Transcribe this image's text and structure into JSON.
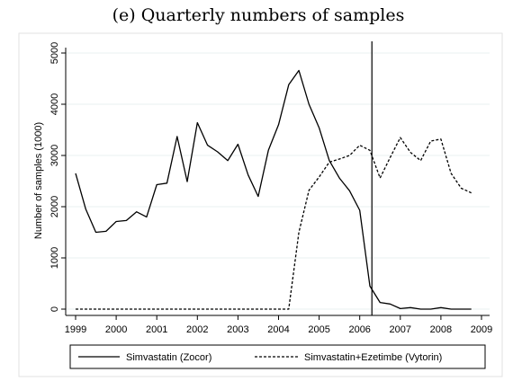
{
  "chart_data": {
    "type": "line",
    "title": "(e) Quarterly numbers of samples",
    "xlabel": "",
    "ylabel": "Number of samples (1000)",
    "xlim": [
      1999,
      2009
    ],
    "ylim": [
      0,
      5000
    ],
    "x_ticks": [
      "1999",
      "2000",
      "2001",
      "2002",
      "2003",
      "2004",
      "2005",
      "2006",
      "2007",
      "2008",
      "2009"
    ],
    "y_ticks": [
      "0",
      "1000",
      "2000",
      "3000",
      "4000",
      "5000"
    ],
    "grid": true,
    "vertical_line_x": 2006.3,
    "legend_position": "bottom",
    "series": [
      {
        "name": "Simvastatin (Zocor)",
        "style": "solid",
        "x": [
          1999.0,
          1999.25,
          1999.5,
          1999.75,
          2000.0,
          2000.25,
          2000.5,
          2000.75,
          2001.0,
          2001.25,
          2001.5,
          2001.75,
          2002.0,
          2002.25,
          2002.5,
          2002.75,
          2003.0,
          2003.25,
          2003.5,
          2003.75,
          2004.0,
          2004.25,
          2004.5,
          2004.75,
          2005.0,
          2005.25,
          2005.5,
          2005.75,
          2006.0,
          2006.25,
          2006.5,
          2006.75,
          2007.0,
          2007.25,
          2007.5,
          2007.75,
          2008.0,
          2008.25,
          2008.5,
          2008.75
        ],
        "values": [
          2650,
          1950,
          1500,
          1520,
          1710,
          1730,
          1900,
          1800,
          2430,
          2460,
          3370,
          2490,
          3640,
          3200,
          3070,
          2900,
          3220,
          2620,
          2200,
          3100,
          3600,
          4380,
          4660,
          4000,
          3540,
          2900,
          2560,
          2310,
          1930,
          450,
          130,
          100,
          10,
          30,
          0,
          0,
          30,
          0,
          0,
          0
        ]
      },
      {
        "name": "Simvastatin+Ezetimbe (Vytorin)",
        "style": "dashed",
        "x": [
          1999.0,
          1999.25,
          1999.5,
          1999.75,
          2000.0,
          2000.25,
          2000.5,
          2000.75,
          2001.0,
          2001.25,
          2001.5,
          2001.75,
          2002.0,
          2002.25,
          2002.5,
          2002.75,
          2003.0,
          2003.25,
          2003.5,
          2003.75,
          2004.0,
          2004.25,
          2004.5,
          2004.75,
          2005.0,
          2005.25,
          2005.5,
          2005.75,
          2006.0,
          2006.25,
          2006.5,
          2006.75,
          2007.0,
          2007.25,
          2007.5,
          2007.75,
          2008.0,
          2008.25,
          2008.5,
          2008.75
        ],
        "values": [
          0,
          0,
          0,
          0,
          0,
          0,
          0,
          0,
          0,
          0,
          0,
          0,
          0,
          0,
          0,
          0,
          0,
          0,
          0,
          0,
          0,
          0,
          1500,
          2320,
          2580,
          2870,
          2930,
          3000,
          3200,
          3100,
          2560,
          2960,
          3350,
          3060,
          2900,
          3280,
          3320,
          2650,
          2360,
          2270
        ]
      }
    ]
  }
}
